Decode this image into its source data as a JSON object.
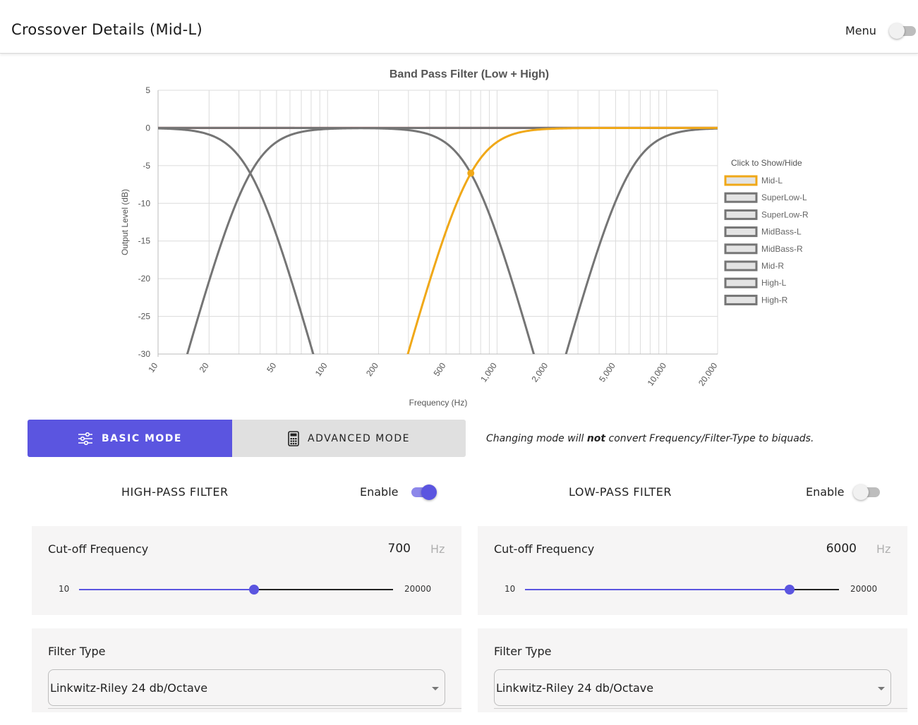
{
  "header": {
    "title": "Crossover Details (Mid-L)",
    "menu_label": "Menu",
    "menu_on": false
  },
  "chart_data": {
    "type": "line",
    "title": "Band Pass Filter (Low + High)",
    "xlabel": "Frequency (Hz)",
    "ylabel": "Output Level (dB)",
    "x_scale": "log",
    "xlim": [
      10,
      20000
    ],
    "ylim": [
      -30,
      5
    ],
    "y_ticks": [
      5,
      0,
      -5,
      -10,
      -15,
      -20,
      -25,
      -30
    ],
    "x_ticks": [
      10,
      20,
      50,
      100,
      200,
      500,
      1000,
      2000,
      5000,
      10000,
      20000
    ],
    "x_tick_labels": [
      "10",
      "20",
      "50",
      "100",
      "200",
      "500",
      "1,000",
      "2,000",
      "5,000",
      "10,000",
      "20,000"
    ],
    "grid": true,
    "legend_title": "Click to Show/Hide",
    "legend_position": "right",
    "series": [
      {
        "name": "Mid-L",
        "color": "#f0a818",
        "filter": "highpass",
        "fc": 700,
        "order": 4
      },
      {
        "name": "SuperLow-L",
        "color": "#757575",
        "filter": "lowpass",
        "fc": 35,
        "order": 4
      },
      {
        "name": "SuperLow-R",
        "color": "#757575",
        "filter": "highpass",
        "fc": 35,
        "order": 4
      },
      {
        "name": "MidBass-L",
        "color": "#757575",
        "filter": "lowpass",
        "fc": 700,
        "order": 4
      },
      {
        "name": "MidBass-R",
        "color": "#757575",
        "filter": "highpass",
        "fc": 6000,
        "order": 4
      },
      {
        "name": "Mid-R",
        "color": "#757575"
      },
      {
        "name": "High-L",
        "color": "#757575"
      },
      {
        "name": "High-R",
        "color": "#757575"
      }
    ],
    "flat_line": {
      "y": 0,
      "color": "#8b0000"
    },
    "marker": {
      "x": 700,
      "y": -6,
      "color": "#f0a818"
    }
  },
  "modes": {
    "basic_label": "BASIC MODE",
    "advanced_label": "ADVANCED MODE",
    "active": "basic"
  },
  "mode_note": {
    "before": "Changing mode will ",
    "bold": "not",
    "after": " convert Frequency/Filter-Type to biquads."
  },
  "highpass": {
    "title": "HIGH-PASS FILTER",
    "enable_label": "Enable",
    "enabled": true,
    "cutoff_label": "Cut-off Frequency",
    "cutoff_value": "700",
    "unit": "Hz",
    "slider_min": "10",
    "slider_max": "20000",
    "slider_position": 0.558,
    "filter_type_label": "Filter Type",
    "filter_type_value": "Linkwitz-Riley 24 db/Octave"
  },
  "lowpass": {
    "title": "LOW-PASS FILTER",
    "enable_label": "Enable",
    "enabled": false,
    "cutoff_label": "Cut-off Frequency",
    "cutoff_value": "6000",
    "unit": "Hz",
    "slider_min": "10",
    "slider_max": "20000",
    "slider_position": 0.842,
    "filter_type_label": "Filter Type",
    "filter_type_value": "Linkwitz-Riley 24 db/Octave"
  },
  "colors": {
    "accent": "#5b55e0",
    "mode_inactive": "#e0e0e0",
    "card": "#f6f5f5"
  },
  "icons": {
    "basic_mode": "sliders-icon",
    "advanced_mode": "calculator-icon",
    "select": "chevron-down-icon"
  }
}
